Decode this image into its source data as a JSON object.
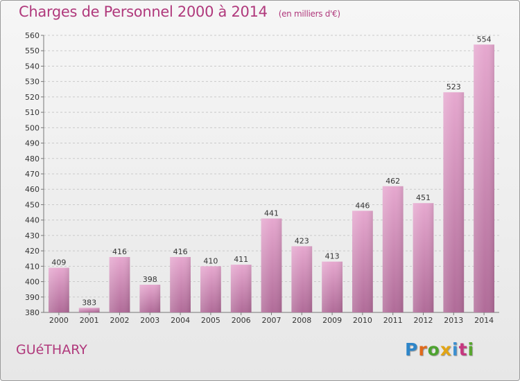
{
  "chart_data": {
    "type": "bar",
    "title": "Charges de Personnel 2000 à 2014",
    "subtitle": "(en milliers d'€)",
    "xlabel": "",
    "ylabel": "",
    "categories": [
      "2000",
      "2001",
      "2002",
      "2003",
      "2004",
      "2005",
      "2006",
      "2007",
      "2008",
      "2009",
      "2010",
      "2011",
      "2012",
      "2013",
      "2014"
    ],
    "values": [
      409,
      383,
      416,
      398,
      416,
      410,
      411,
      441,
      423,
      413,
      446,
      462,
      451,
      523,
      554
    ],
    "ylim": [
      380,
      560
    ],
    "yticks": [
      380,
      390,
      400,
      410,
      420,
      430,
      440,
      450,
      460,
      470,
      480,
      490,
      500,
      510,
      520,
      530,
      540,
      550,
      560
    ],
    "grid": true,
    "legend": "none",
    "bar_color_top": "#e6a8cf",
    "bar_color_bottom": "#b06b98"
  },
  "commune": "GUéTHARY",
  "logo": {
    "letters": [
      "P",
      "r",
      "o",
      "x",
      "i",
      "t",
      "i"
    ],
    "colors": [
      "#2e86c9",
      "#e06a1c",
      "#4da32f",
      "#e2a515",
      "#3b8fd0",
      "#c6377f",
      "#59a72f"
    ]
  }
}
